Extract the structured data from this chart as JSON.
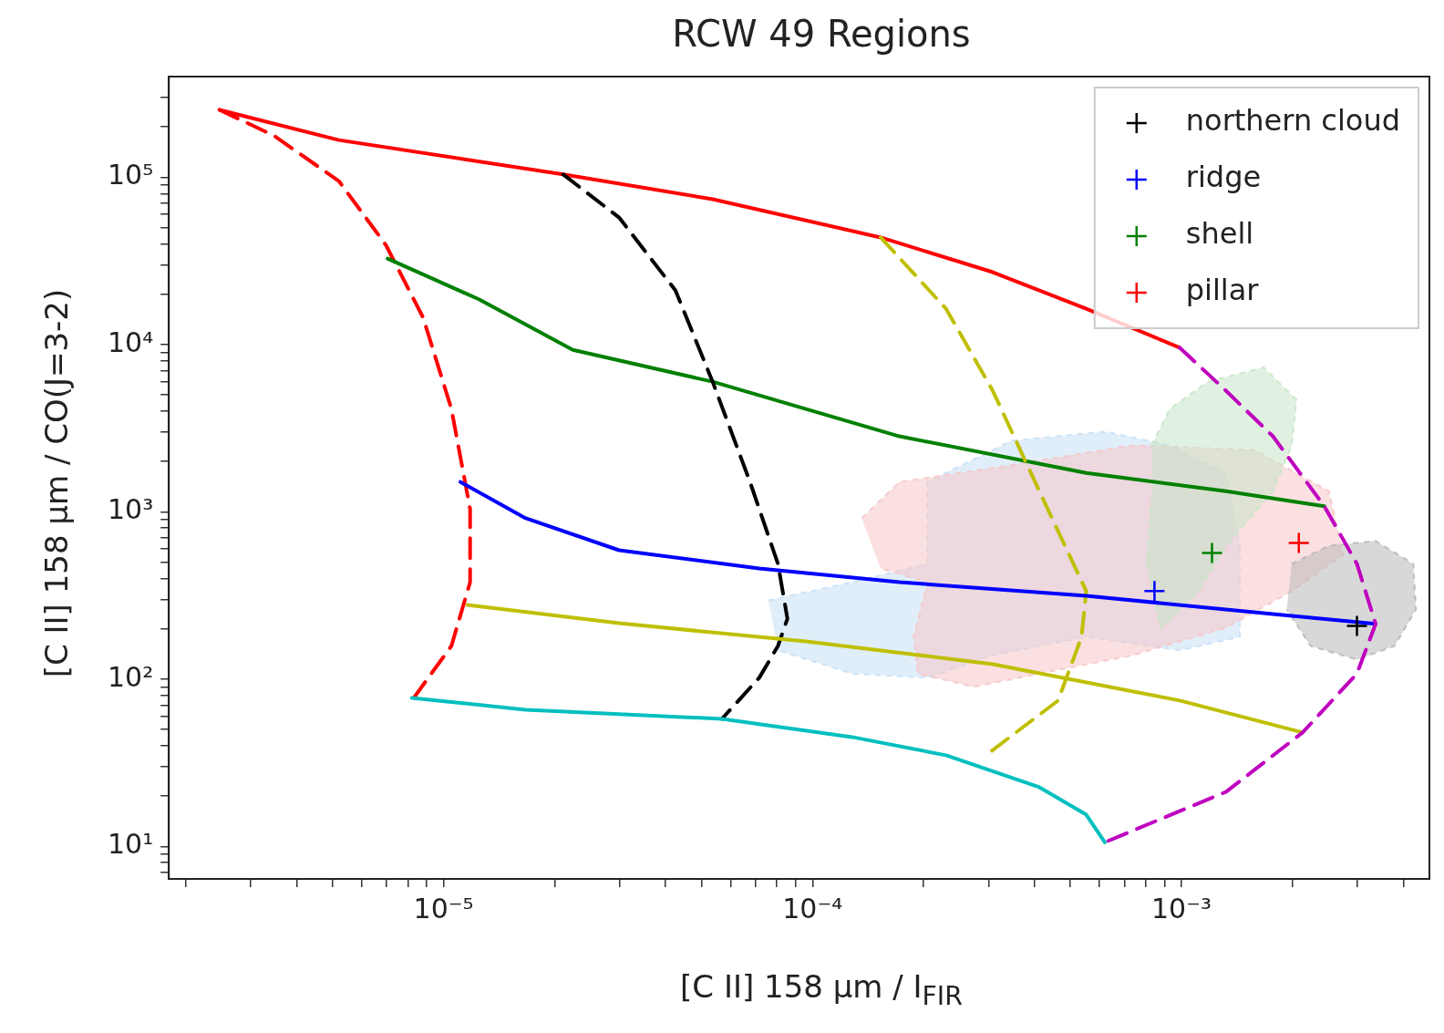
{
  "chart_data": {
    "type": "line",
    "title": "RCW 49 Regions",
    "xlabel": "[C II] 158 μm / I$_{FIR}$",
    "ylabel": "[C II] 158 μm / CO(J=3-2)",
    "log": "xy",
    "grid": false,
    "legend": "top right",
    "xlim": [
      1.8e-06,
      0.0047
    ],
    "ylim": [
      6.4,
      400000.0
    ],
    "xticks": [
      {
        "value": 2e-06,
        "label": null
      },
      {
        "value": 3e-06,
        "label": null
      },
      {
        "value": 4e-06,
        "label": null
      },
      {
        "value": 5e-06,
        "label": null
      },
      {
        "value": 6e-06,
        "label": null
      },
      {
        "value": 7e-06,
        "label": null
      },
      {
        "value": 8e-06,
        "label": null
      },
      {
        "value": 9e-06,
        "label": null
      },
      {
        "value": 1e-05,
        "label": "10⁻⁵"
      },
      {
        "value": 2e-05,
        "label": null
      },
      {
        "value": 3e-05,
        "label": null
      },
      {
        "value": 4e-05,
        "label": null
      },
      {
        "value": 5e-05,
        "label": null
      },
      {
        "value": 6e-05,
        "label": null
      },
      {
        "value": 7e-05,
        "label": null
      },
      {
        "value": 8e-05,
        "label": null
      },
      {
        "value": 9e-05,
        "label": null
      },
      {
        "value": 0.0001,
        "label": "10⁻⁴"
      },
      {
        "value": 0.0002,
        "label": null
      },
      {
        "value": 0.0003,
        "label": null
      },
      {
        "value": 0.0004,
        "label": null
      },
      {
        "value": 0.0005,
        "label": null
      },
      {
        "value": 0.0006,
        "label": null
      },
      {
        "value": 0.0007,
        "label": null
      },
      {
        "value": 0.0008,
        "label": null
      },
      {
        "value": 0.0009,
        "label": null
      },
      {
        "value": 0.001,
        "label": "10⁻³"
      },
      {
        "value": 0.002,
        "label": null
      },
      {
        "value": 0.003,
        "label": null
      },
      {
        "value": 0.004,
        "label": null
      }
    ],
    "yticks": [
      {
        "value": 7,
        "label": null
      },
      {
        "value": 8,
        "label": null
      },
      {
        "value": 9,
        "label": null
      },
      {
        "value": 10,
        "label": "10¹"
      },
      {
        "value": 20,
        "label": null
      },
      {
        "value": 30,
        "label": null
      },
      {
        "value": 40,
        "label": null
      },
      {
        "value": 50,
        "label": null
      },
      {
        "value": 60,
        "label": null
      },
      {
        "value": 70,
        "label": null
      },
      {
        "value": 80,
        "label": null
      },
      {
        "value": 90,
        "label": null
      },
      {
        "value": 100,
        "label": "10²"
      },
      {
        "value": 200,
        "label": null
      },
      {
        "value": 300,
        "label": null
      },
      {
        "value": 400,
        "label": null
      },
      {
        "value": 500,
        "label": null
      },
      {
        "value": 600,
        "label": null
      },
      {
        "value": 700,
        "label": null
      },
      {
        "value": 800,
        "label": null
      },
      {
        "value": 900,
        "label": null
      },
      {
        "value": 1000,
        "label": "10³"
      },
      {
        "value": 2000,
        "label": null
      },
      {
        "value": 3000,
        "label": null
      },
      {
        "value": 4000,
        "label": null
      },
      {
        "value": 5000,
        "label": null
      },
      {
        "value": 6000,
        "label": null
      },
      {
        "value": 7000,
        "label": null
      },
      {
        "value": 8000,
        "label": null
      },
      {
        "value": 9000,
        "label": null
      },
      {
        "value": 10000,
        "label": "10⁴"
      },
      {
        "value": 20000,
        "label": null
      },
      {
        "value": 30000,
        "label": null
      },
      {
        "value": 40000,
        "label": null
      },
      {
        "value": 50000,
        "label": null
      },
      {
        "value": 60000,
        "label": null
      },
      {
        "value": 70000,
        "label": null
      },
      {
        "value": 80000,
        "label": null
      },
      {
        "value": 90000,
        "label": null
      },
      {
        "value": 100000,
        "label": "10⁵"
      },
      {
        "value": 200000,
        "label": null
      },
      {
        "value": 300000,
        "label": null
      }
    ],
    "series": [
      {
        "type": "area",
        "color": "#c6e0f5",
        "x": [
          7.6e-05,
          0.000128,
          0.000205,
          0.000205,
          0.000346,
          0.00062,
          0.00093,
          0.00132,
          0.00144,
          0.00144,
          0.00099,
          0.000552,
          0.000308,
          0.000205,
          0.000128,
          8.06e-05
        ],
        "values": [
          296,
          380,
          489,
          1510,
          2660,
          3020,
          2500,
          1710,
          628,
          179,
          149,
          179,
          139,
          102,
          108,
          149
        ]
      },
      {
        "type": "area",
        "color": "#f5c6c6",
        "x": [
          0.000136,
          0.000172,
          0.000308,
          0.000738,
          0.00157,
          0.00251,
          0.00274,
          0.00199,
          0.00132,
          0.000738,
          0.000412,
          0.000274,
          0.000193,
          0.000188,
          0.000205,
          0.000153
        ],
        "values": [
          916,
          1510,
          1830,
          2500,
          2350,
          1330,
          554,
          336,
          203,
          139,
          108,
          89.9,
          108,
          179,
          380,
          459
        ]
      },
      {
        "type": "area",
        "color": "#c8e6c8",
        "x": [
          0.00083,
          0.00093,
          0.00118,
          0.00167,
          0.00205,
          0.00199,
          0.00177,
          0.00132,
          0.00111,
          0.00088,
          0.000805,
          0.00083
        ],
        "values": [
          2500,
          4130,
          6000,
          7300,
          4680,
          2500,
          1330,
          628,
          336,
          203,
          489,
          1180
        ]
      },
      {
        "type": "area",
        "color": "#b8b8b8",
        "x": [
          0.00199,
          0.00251,
          0.00336,
          0.00425,
          0.00432,
          0.00378,
          0.00299,
          0.00224,
          0.00193
        ],
        "values": [
          489,
          628,
          670,
          489,
          261,
          158,
          131,
          158,
          261
        ]
      },
      {
        "color": "#ff0000",
        "line_style": "solid",
        "x": [
          2.47e-06,
          5.2e-06,
          2.11e-05,
          5.36e-05,
          0.000153,
          0.000308,
          0.000552,
          0.00099
        ],
        "values": [
          253000,
          167000,
          104000,
          74000,
          43700,
          27100,
          16400,
          9570
        ]
      },
      {
        "color": "#ff0000",
        "line_style": "dashed",
        "x": [
          2.47e-06,
          3.46e-06,
          5.2e-06,
          6.97e-06,
          8.8e-06,
          1.05e-05,
          1.18e-05,
          1.18e-05,
          1.05e-05,
          8.3e-06
        ],
        "values": [
          253000,
          178000,
          95000,
          39500,
          14500,
          4130,
          1040,
          380,
          158,
          77.3
        ]
      },
      {
        "color": "#008000",
        "line_style": "solid",
        "x": [
          7.05e-06,
          1.25e-05,
          2.24e-05,
          5.36e-05,
          0.000172,
          0.000552,
          0.00132,
          0.00244
        ],
        "values": [
          32700,
          18600,
          9300,
          6000,
          2830,
          1710,
          1330,
          1080
        ]
      },
      {
        "color": "#000000",
        "line_style": "dashed",
        "x": [
          2.11e-05,
          2.99e-05,
          4.25e-05,
          5.36e-05,
          6.77e-05,
          8.06e-05,
          8.55e-05,
          8.06e-05,
          7.17e-05,
          5.68e-05
        ],
        "values": [
          104000,
          57500,
          21100,
          6000,
          1510,
          489,
          230,
          158,
          102,
          57.9
        ]
      },
      {
        "color": "#bfbf00",
        "line_style": "dashed",
        "x": [
          0.000153,
          0.00023,
          0.000308,
          0.000412,
          0.000552,
          0.000536,
          0.000463,
          0.000299
        ],
        "values": [
          43700,
          16400,
          5300,
          1330,
          336,
          179,
          74.5,
          35.9
        ]
      },
      {
        "color": "#0000ff",
        "line_style": "solid",
        "x": [
          1.11e-05,
          1.67e-05,
          2.99e-05,
          7.17e-05,
          0.000172,
          0.000552,
          0.00177,
          0.00336
        ],
        "values": [
          1510,
          916,
          590,
          459,
          380,
          315,
          245,
          214
        ]
      },
      {
        "color": "#bfbf00",
        "line_style": "solid",
        "x": [
          1.16e-05,
          2.99e-05,
          9.6e-05,
          0.000308,
          0.00099,
          0.00213
        ],
        "values": [
          278,
          216,
          168,
          123,
          74.5,
          48
        ]
      },
      {
        "color": "#00bfbf",
        "line_style": "solid",
        "x": [
          8.2e-06,
          1.67e-05,
          5.68e-05,
          0.000128,
          0.00023,
          0.000412,
          0.000552,
          0.00062
        ],
        "values": [
          77.3,
          65.6,
          57.9,
          45.1,
          35.1,
          22.6,
          15.5,
          10.6
        ]
      },
      {
        "color": "#bf00bf",
        "line_style": "dashed",
        "x": [
          0.00099,
          0.00132,
          0.00177,
          0.00244,
          0.00299,
          0.00336,
          0.00299,
          0.00213,
          0.00132,
          0.00062
        ],
        "values": [
          9570,
          5300,
          2830,
          1080,
          489,
          214,
          108,
          48,
          21.2,
          10.6
        ]
      },
      {
        "type": "scatter",
        "name": "northern cloud",
        "color": "#000000",
        "marker": "cross",
        "x": [
          0.00299
        ],
        "values": [
          208
        ]
      },
      {
        "type": "scatter",
        "name": "ridge",
        "color": "#0000ff",
        "marker": "cross",
        "x": [
          0.000845
        ],
        "values": [
          336
        ]
      },
      {
        "type": "scatter",
        "name": "shell",
        "color": "#008000",
        "marker": "cross",
        "x": [
          0.00121
        ],
        "values": [
          569
        ]
      },
      {
        "type": "scatter",
        "name": "pillar",
        "color": "#ff0000",
        "marker": "cross",
        "x": [
          0.00208
        ],
        "values": [
          653
        ]
      }
    ]
  }
}
